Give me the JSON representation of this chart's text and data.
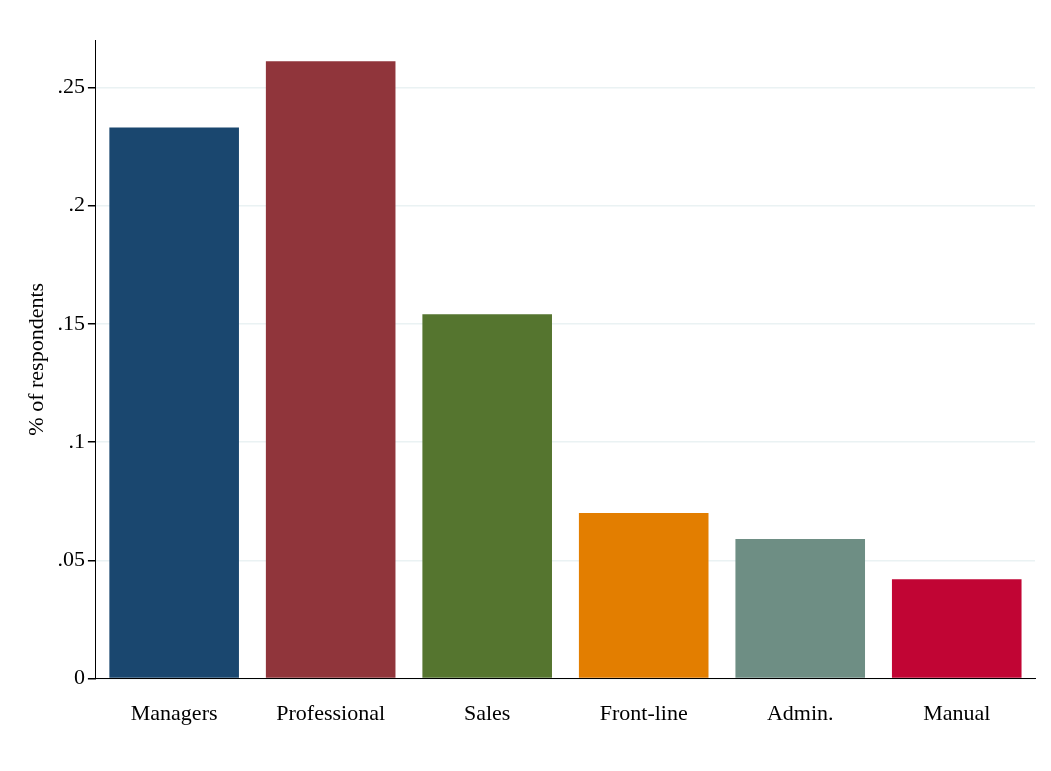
{
  "chart_data": {
    "type": "bar",
    "ylabel": "% of respondents",
    "categories": [
      "Managers",
      "Professional",
      "Sales",
      "Front-line",
      "Admin.",
      "Manual"
    ],
    "values": [
      0.233,
      0.261,
      0.154,
      0.07,
      0.059,
      0.042
    ],
    "colors": [
      "#1a476f",
      "#90353b",
      "#55752f",
      "#e37e00",
      "#6e8e84",
      "#c10534"
    ],
    "ylim": [
      0,
      0.27
    ],
    "yticks": [
      {
        "value": 0,
        "label": "0"
      },
      {
        "value": 0.05,
        "label": ".05"
      },
      {
        "value": 0.1,
        "label": ".1"
      },
      {
        "value": 0.15,
        "label": ".15"
      },
      {
        "value": 0.2,
        "label": ".2"
      },
      {
        "value": 0.25,
        "label": ".25"
      }
    ],
    "grid": "y",
    "legend": false
  }
}
